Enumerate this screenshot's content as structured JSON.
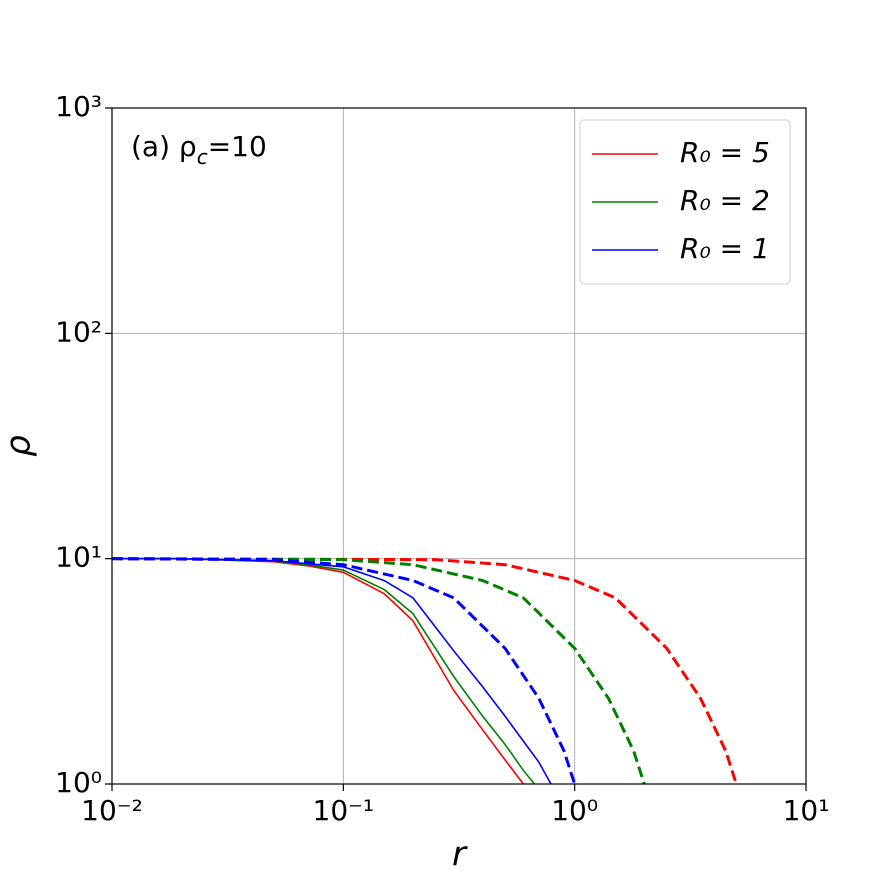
{
  "chart_data": {
    "type": "line",
    "xlabel": "r",
    "ylabel": "ρ",
    "annotation": {
      "text": "(a) ρ",
      "sub": "c",
      "after": "=10"
    },
    "xscale": "log",
    "yscale": "log",
    "grid": true,
    "legend": "upper right",
    "xlim": [
      0.01,
      10
    ],
    "ylim": [
      1,
      1000
    ],
    "xticks": [
      {
        "value": 0.01,
        "label": "10⁻²"
      },
      {
        "value": 0.1,
        "label": "10⁻¹"
      },
      {
        "value": 1,
        "label": "10⁰"
      },
      {
        "value": 10,
        "label": "10¹"
      }
    ],
    "yticks": [
      {
        "value": 1,
        "label": "10⁰"
      },
      {
        "value": 10,
        "label": "10¹"
      },
      {
        "value": 100,
        "label": "10²"
      },
      {
        "value": 1000,
        "label": "10³"
      }
    ],
    "series": [
      {
        "name": "R₀ = 5",
        "color": "#ff0000",
        "dashed": false,
        "x": [
          0.01,
          0.02,
          0.05,
          0.07,
          0.1,
          0.15,
          0.2,
          0.3,
          0.4,
          0.5,
          0.6
        ],
        "values": [
          10,
          10,
          9.7,
          9.3,
          8.7,
          7.0,
          5.3,
          2.6,
          1.74,
          1.28,
          1.0
        ]
      },
      {
        "name": "R₀ = 2",
        "color": "#008000",
        "dashed": false,
        "x": [
          0.01,
          0.02,
          0.05,
          0.07,
          0.1,
          0.15,
          0.2,
          0.3,
          0.4,
          0.5,
          0.6,
          0.67
        ],
        "values": [
          10,
          10,
          9.75,
          9.4,
          8.9,
          7.3,
          5.7,
          3.0,
          2.0,
          1.5,
          1.15,
          1.0
        ]
      },
      {
        "name": "R₀ = 1",
        "color": "#0000ff",
        "dashed": false,
        "x": [
          0.01,
          0.02,
          0.05,
          0.07,
          0.1,
          0.15,
          0.2,
          0.3,
          0.4,
          0.5,
          0.6,
          0.7,
          0.79
        ],
        "values": [
          10,
          10,
          9.8,
          9.5,
          9.2,
          8.0,
          6.7,
          3.9,
          2.7,
          2.0,
          1.55,
          1.25,
          1.0
        ]
      },
      {
        "color": "#ff0000",
        "dashed": true,
        "x": [
          0.01,
          0.25,
          0.5,
          1.0,
          1.5,
          2.5,
          3.5,
          4.5,
          4.85,
          5.0
        ],
        "values": [
          10,
          9.9,
          9.4,
          8.0,
          6.7,
          4.0,
          2.4,
          1.4,
          1.1,
          1.0
        ]
      },
      {
        "color": "#008000",
        "dashed": true,
        "x": [
          0.01,
          0.1,
          0.2,
          0.4,
          0.6,
          1.0,
          1.4,
          1.8,
          1.94,
          2.0
        ],
        "values": [
          10,
          9.9,
          9.4,
          8.0,
          6.7,
          4.0,
          2.4,
          1.4,
          1.1,
          1.0
        ]
      },
      {
        "color": "#0000ff",
        "dashed": true,
        "x": [
          0.01,
          0.05,
          0.1,
          0.2,
          0.3,
          0.5,
          0.7,
          0.9,
          0.97,
          1.0
        ],
        "values": [
          10,
          9.9,
          9.4,
          8.0,
          6.7,
          4.0,
          2.4,
          1.4,
          1.1,
          1.0
        ]
      }
    ]
  }
}
